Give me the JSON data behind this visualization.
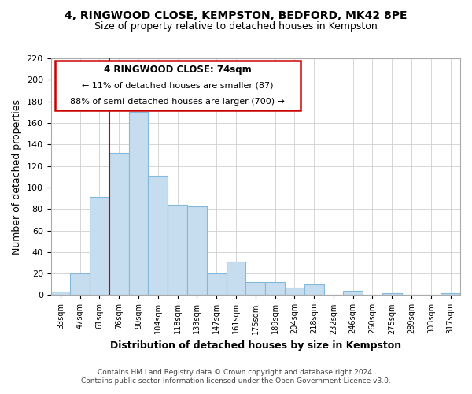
{
  "title": "4, RINGWOOD CLOSE, KEMPSTON, BEDFORD, MK42 8PE",
  "subtitle": "Size of property relative to detached houses in Kempston",
  "xlabel": "Distribution of detached houses by size in Kempston",
  "ylabel": "Number of detached properties",
  "bin_labels": [
    "33sqm",
    "47sqm",
    "61sqm",
    "76sqm",
    "90sqm",
    "104sqm",
    "118sqm",
    "133sqm",
    "147sqm",
    "161sqm",
    "175sqm",
    "189sqm",
    "204sqm",
    "218sqm",
    "232sqm",
    "246sqm",
    "260sqm",
    "275sqm",
    "289sqm",
    "303sqm",
    "317sqm"
  ],
  "bar_heights": [
    3,
    20,
    91,
    132,
    170,
    111,
    84,
    82,
    20,
    31,
    12,
    12,
    7,
    10,
    0,
    4,
    0,
    2,
    0,
    0,
    2
  ],
  "bar_color": "#c6dcef",
  "bar_edge_color": "#85b9d9",
  "ylim": [
    0,
    220
  ],
  "yticks": [
    0,
    20,
    40,
    60,
    80,
    100,
    120,
    140,
    160,
    180,
    200,
    220
  ],
  "vline_x_bar_idx": 3,
  "vline_color": "#cc0000",
  "annotation_title": "4 RINGWOOD CLOSE: 74sqm",
  "annotation_line1": "← 11% of detached houses are smaller (87)",
  "annotation_line2": "88% of semi-detached houses are larger (700) →",
  "footer_line1": "Contains HM Land Registry data © Crown copyright and database right 2024.",
  "footer_line2": "Contains public sector information licensed under the Open Government Licence v3.0.",
  "background_color": "#ffffff",
  "grid_color": "#d0d0d0"
}
